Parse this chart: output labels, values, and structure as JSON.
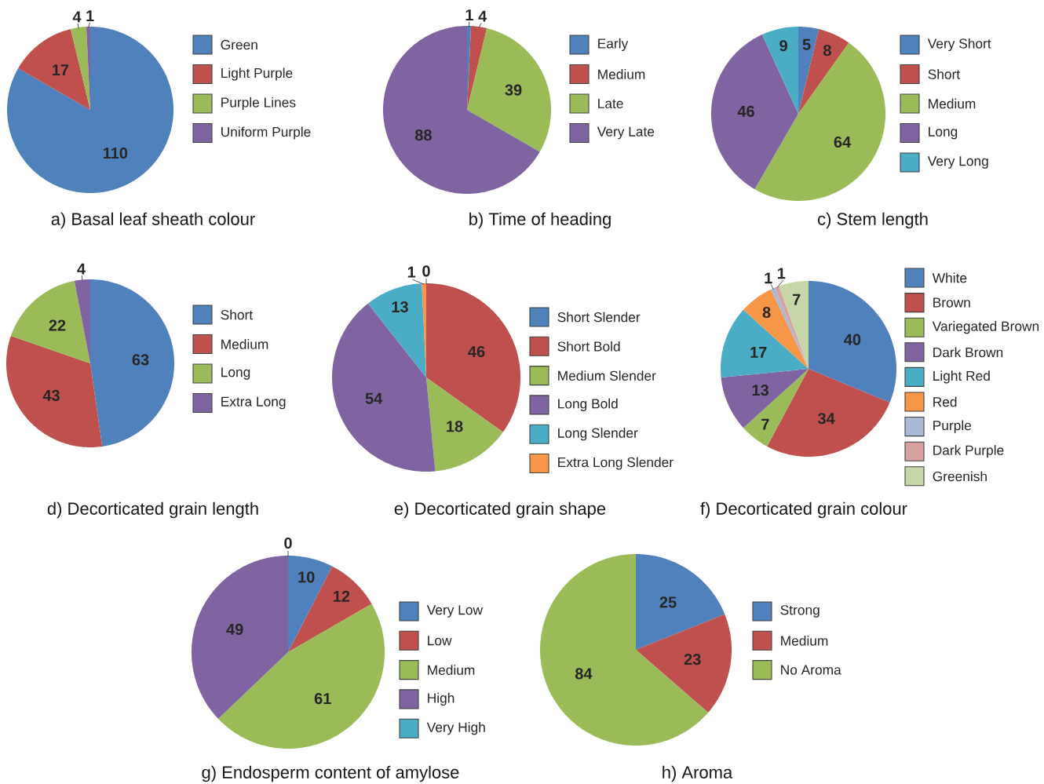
{
  "chart_data": [
    {
      "type": "pie",
      "title": "a) Basal leaf sheath colour",
      "categories": [
        "Green",
        "Light Purple",
        "Purple Lines",
        "Uniform Purple"
      ],
      "values": [
        110,
        17,
        4,
        1
      ],
      "colors": [
        "#4f81bd",
        "#c0504d",
        "#9bbb59",
        "#8064a2"
      ],
      "data_labels": true,
      "legend": "right"
    },
    {
      "type": "pie",
      "title": "b) Time of heading",
      "categories": [
        "Early",
        "Medium",
        "Late",
        "Very Late"
      ],
      "values": [
        1,
        4,
        39,
        88
      ],
      "colors": [
        "#4f81bd",
        "#c0504d",
        "#9bbb59",
        "#8064a2"
      ],
      "data_labels": true,
      "legend": "right"
    },
    {
      "type": "pie",
      "title": "c) Stem length",
      "categories": [
        "Very Short",
        "Short",
        "Medium",
        "Long",
        "Very Long"
      ],
      "values": [
        5,
        8,
        64,
        46,
        9
      ],
      "colors": [
        "#4f81bd",
        "#c0504d",
        "#9bbb59",
        "#8064a2",
        "#4bacc6"
      ],
      "data_labels": true,
      "legend": "right"
    },
    {
      "type": "pie",
      "title": "d) Decorticated grain length",
      "categories": [
        "Short",
        "Medium",
        "Long",
        "Extra Long"
      ],
      "values": [
        63,
        43,
        22,
        4
      ],
      "colors": [
        "#4f81bd",
        "#c0504d",
        "#9bbb59",
        "#8064a2"
      ],
      "data_labels": true,
      "legend": "right"
    },
    {
      "type": "pie",
      "title": "e) Decorticated grain shape",
      "categories": [
        "Short Slender",
        "Short Bold",
        "Medium Slender",
        "Long Bold",
        "Long Slender",
        "Extra Long Slender"
      ],
      "values": [
        0,
        46,
        18,
        54,
        13,
        1
      ],
      "value_labels": [
        "0",
        "46",
        "18",
        "54",
        "13",
        "1"
      ],
      "colors": [
        "#4f81bd",
        "#c0504d",
        "#9bbb59",
        "#8064a2",
        "#4bacc6",
        "#f79646"
      ],
      "legend": "right"
    },
    {
      "type": "pie",
      "title": "f) Decorticated grain colour",
      "categories": [
        "White",
        "Brown",
        "Variegated Brown",
        "Dark Brown",
        "Light Red",
        "Red",
        "Purple",
        "Dark Purple",
        "Greenish"
      ],
      "values": [
        40,
        34,
        7,
        13,
        17,
        8,
        1,
        1,
        7
      ],
      "colors": [
        "#4f81bd",
        "#c0504d",
        "#9bbb59",
        "#8064a2",
        "#4bacc6",
        "#f79646",
        "#a9b9d6",
        "#d8a0a0",
        "#c6d6a6"
      ],
      "data_labels": true,
      "legend": "right"
    },
    {
      "type": "pie",
      "title": "g) Endosperm content of amylose",
      "categories": [
        "Very Low",
        "Low",
        "Medium",
        "High",
        "Very High"
      ],
      "values": [
        10,
        12,
        61,
        49,
        0
      ],
      "value_labels": [
        "10",
        "12",
        "61",
        "49",
        "0"
      ],
      "colors": [
        "#4f81bd",
        "#c0504d",
        "#9bbb59",
        "#8064a2",
        "#4bacc6"
      ],
      "legend": "right"
    },
    {
      "type": "pie",
      "title": "h) Aroma",
      "categories": [
        "Strong",
        "Medium",
        "No Aroma"
      ],
      "values": [
        25,
        23,
        84
      ],
      "colors": [
        "#4f81bd",
        "#c0504d",
        "#9bbb59"
      ],
      "data_labels": true,
      "legend": "right"
    }
  ]
}
